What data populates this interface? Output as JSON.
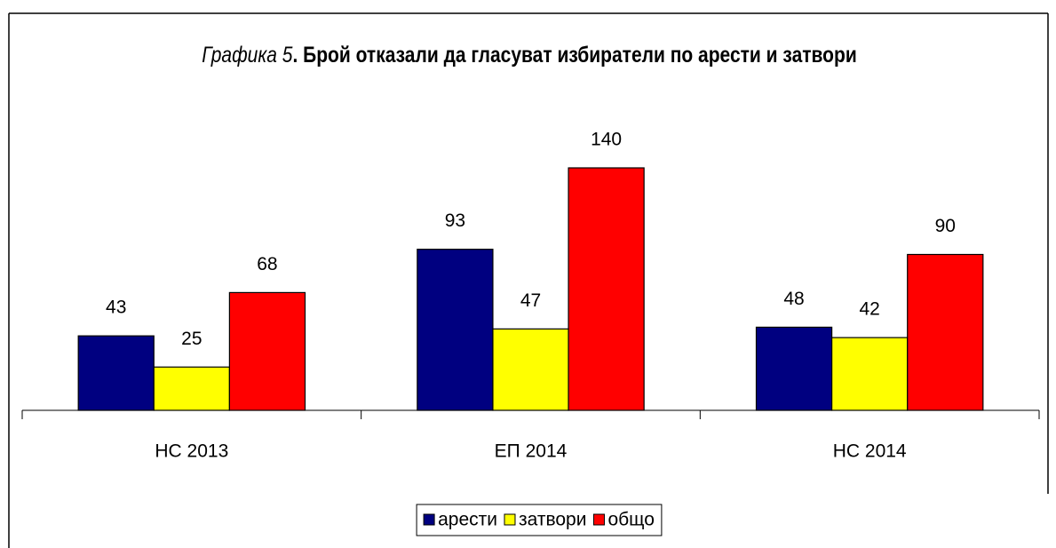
{
  "chart_data": {
    "type": "bar",
    "title": [
      "Графика 5",
      ". Брой отказали да гласуват избиратели по арести и затвори"
    ],
    "categories": [
      "НС 2013",
      "ЕП 2014",
      "НС 2014"
    ],
    "series": [
      {
        "name": "арести",
        "color": "#000080",
        "values": [
          43,
          93,
          48
        ]
      },
      {
        "name": "затвори",
        "color": "#ffff00",
        "values": [
          25,
          47,
          42
        ]
      },
      {
        "name": "общо",
        "color": "#ff0000",
        "values": [
          68,
          140,
          90
        ]
      }
    ],
    "ylim": [
      0,
      140
    ],
    "legend": "bottom"
  }
}
